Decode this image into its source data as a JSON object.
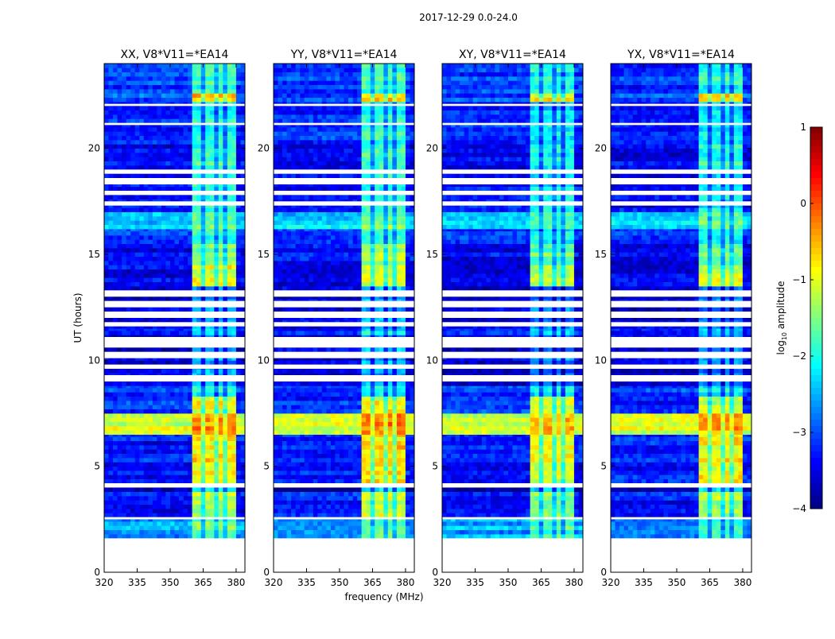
{
  "chart_data": {
    "type": "heatmap",
    "title": "2017-12-29 0.0-24.0",
    "xlabel": "frequency (MHz)",
    "ylabel": "UT (hours)",
    "xlim": [
      320,
      384
    ],
    "ylim": [
      0,
      24
    ],
    "xticks": [
      "320",
      "335",
      "350",
      "365",
      "380"
    ],
    "xtick_values": [
      320,
      335,
      350,
      365,
      380
    ],
    "yticks": [
      "0",
      "5",
      "10",
      "15",
      "20"
    ],
    "ytick_values": [
      0,
      5,
      10,
      15,
      20
    ],
    "panels": [
      {
        "title": "XX, V8*V11=*EA14",
        "offset": 0.0
      },
      {
        "title": "YY, V8*V11=*EA14",
        "offset": 0.05
      },
      {
        "title": "XY, V8*V11=*EA14",
        "offset": -0.2
      },
      {
        "title": "YX, V8*V11=*EA14",
        "offset": -0.1
      }
    ],
    "band_mhz": [
      360.5,
      380
    ],
    "band_gaps_mhz": [
      365.5,
      370.5,
      375.5
    ],
    "segments_hours_bglog_bandlog": [
      [
        1.6,
        2.5,
        -2.6,
        -1.6
      ],
      [
        2.6,
        3.8,
        -3.3,
        -1.2
      ],
      [
        3.8,
        4.0,
        -3.8,
        -2.0
      ],
      [
        4.2,
        6.5,
        -3.3,
        -0.8
      ],
      [
        6.5,
        7.5,
        -1.1,
        -0.3
      ],
      [
        7.5,
        8.3,
        -3.2,
        -1.0
      ],
      [
        8.3,
        8.8,
        -3.1,
        -2.0
      ],
      [
        8.8,
        11.2,
        -3.6,
        -2.6
      ],
      [
        11.2,
        11.5,
        -3.3,
        -2.2
      ],
      [
        11.5,
        13.5,
        -3.6,
        -2.6
      ],
      [
        13.5,
        14.5,
        -3.5,
        -1.0
      ],
      [
        14.5,
        15.5,
        -3.4,
        -1.4
      ],
      [
        15.5,
        16.2,
        -3.2,
        -2.0
      ],
      [
        16.2,
        17.0,
        -2.3,
        -1.5
      ],
      [
        17.0,
        19.0,
        -3.4,
        -2.0
      ],
      [
        19.0,
        20.2,
        -3.4,
        -1.8
      ],
      [
        20.2,
        22.2,
        -3.2,
        -2.0
      ],
      [
        22.2,
        22.6,
        -3.0,
        -0.6
      ],
      [
        22.6,
        24.0,
        -3.1,
        -1.8
      ]
    ],
    "flagged_ranges_hours": [
      [
        0,
        1.6
      ],
      [
        2.5,
        2.6
      ],
      [
        4.0,
        4.2
      ],
      [
        9.0,
        9.3
      ],
      [
        9.6,
        9.8
      ],
      [
        10.1,
        10.4
      ],
      [
        10.6,
        11.1
      ],
      [
        11.6,
        11.8
      ],
      [
        12.0,
        12.3
      ],
      [
        12.5,
        12.8
      ],
      [
        13.0,
        13.3
      ],
      [
        17.3,
        17.5
      ],
      [
        17.8,
        18.0
      ],
      [
        18.3,
        18.6
      ],
      [
        18.8,
        19.0
      ],
      [
        21.1,
        21.2
      ],
      [
        22.0,
        22.1
      ]
    ],
    "colorbar": {
      "label": "log",
      "label_sub": "10",
      "label_rest": " amplitude",
      "range": [
        -4,
        1
      ],
      "ticks": [
        "1",
        "0",
        "−1",
        "−2",
        "−3",
        "−4"
      ],
      "tick_values": [
        1,
        0,
        -1,
        -2,
        -3,
        -4
      ],
      "colormap": "jet"
    }
  }
}
